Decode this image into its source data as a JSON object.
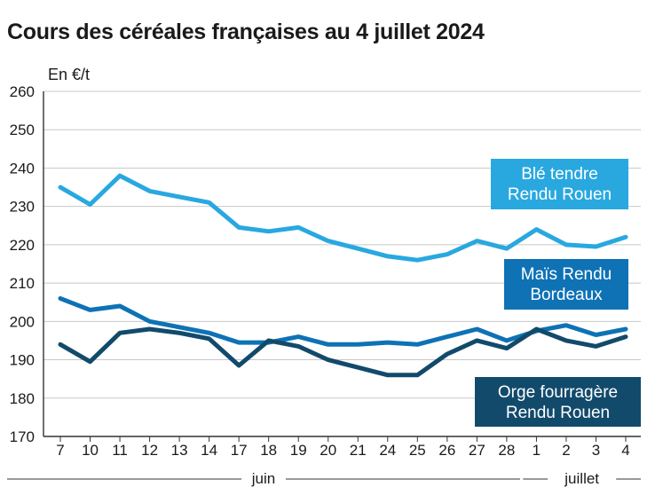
{
  "title": "Cours des céréales françaises au 4 juillet 2024",
  "unit_label": "En €/t",
  "month_labels": [
    "juin",
    "juillet"
  ],
  "chart_data": {
    "type": "line",
    "title": "Cours des céréales françaises au 4 juillet 2024",
    "ylabel": "En €/t",
    "ylim": [
      170,
      260
    ],
    "yticks": [
      170,
      180,
      190,
      200,
      210,
      220,
      230,
      240,
      250,
      260
    ],
    "grid": true,
    "x": [
      "7",
      "10",
      "11",
      "12",
      "13",
      "14",
      "17",
      "18",
      "19",
      "20",
      "21",
      "24",
      "25",
      "26",
      "27",
      "28",
      "1",
      "2",
      "3",
      "4"
    ],
    "months": [
      {
        "name": "juin",
        "from": 0,
        "to": 15
      },
      {
        "name": "juillet",
        "from": 16,
        "to": 19
      }
    ],
    "series": [
      {
        "name": "Blé tendre Rendu Rouen",
        "label_lines": [
          "Blé tendre",
          "Rendu Rouen"
        ],
        "color": "#29a8e0",
        "values": [
          235,
          230.5,
          238,
          234,
          232.5,
          231,
          224.5,
          223.5,
          224.5,
          221,
          219,
          217,
          216,
          217.5,
          221,
          219,
          224,
          220,
          219.5,
          222
        ]
      },
      {
        "name": "Maïs Rendu Bordeaux",
        "label_lines": [
          "Maïs Rendu",
          "Bordeaux"
        ],
        "color": "#0e72b5",
        "values": [
          206,
          203,
          204,
          200,
          198.5,
          197,
          194.5,
          194.5,
          196,
          194,
          194,
          194.5,
          194,
          196,
          198,
          195,
          197.5,
          199,
          196.5,
          198
        ]
      },
      {
        "name": "Orge fourragère Rendu Rouen",
        "label_lines": [
          "Orge fourragère",
          "Rendu Rouen"
        ],
        "color": "#124a6b",
        "values": [
          194,
          189.5,
          197,
          198,
          197,
          195.5,
          188.5,
          195,
          193.5,
          190,
          188,
          186,
          186,
          191.5,
          195,
          193,
          198,
          195,
          193.5,
          196
        ]
      }
    ]
  }
}
